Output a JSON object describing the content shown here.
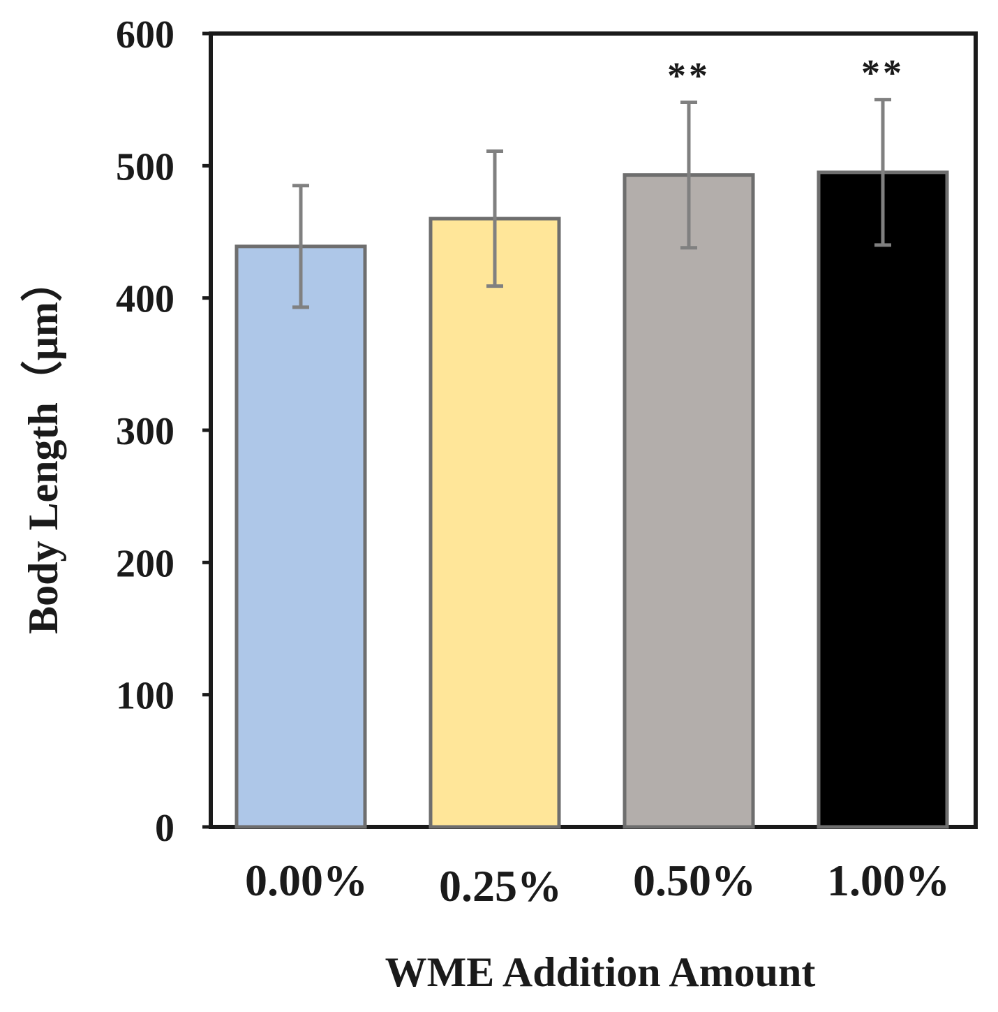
{
  "chart_data": {
    "type": "bar",
    "xlabel": "WME Addition Amount",
    "ylabel": "Body Length（μm）",
    "ylim": [
      0,
      600
    ],
    "yticks": [
      0,
      100,
      200,
      300,
      400,
      500,
      600
    ],
    "yticklabels": [
      "0",
      "100",
      "200",
      "300",
      "400",
      "500",
      "600"
    ],
    "categories": [
      "0.00%",
      "0.25%",
      "0.50%",
      "1.00%"
    ],
    "values": [
      439,
      460,
      493,
      495
    ],
    "error": [
      46,
      51,
      55,
      55
    ],
    "significance": [
      "",
      "",
      "**",
      "**"
    ],
    "colors": [
      "#aec7e8",
      "#ffe699",
      "#b3aeab",
      "#000000"
    ],
    "edge_color": "#6e6e6e",
    "error_color": "#808080",
    "grid": false,
    "legend": "none"
  }
}
